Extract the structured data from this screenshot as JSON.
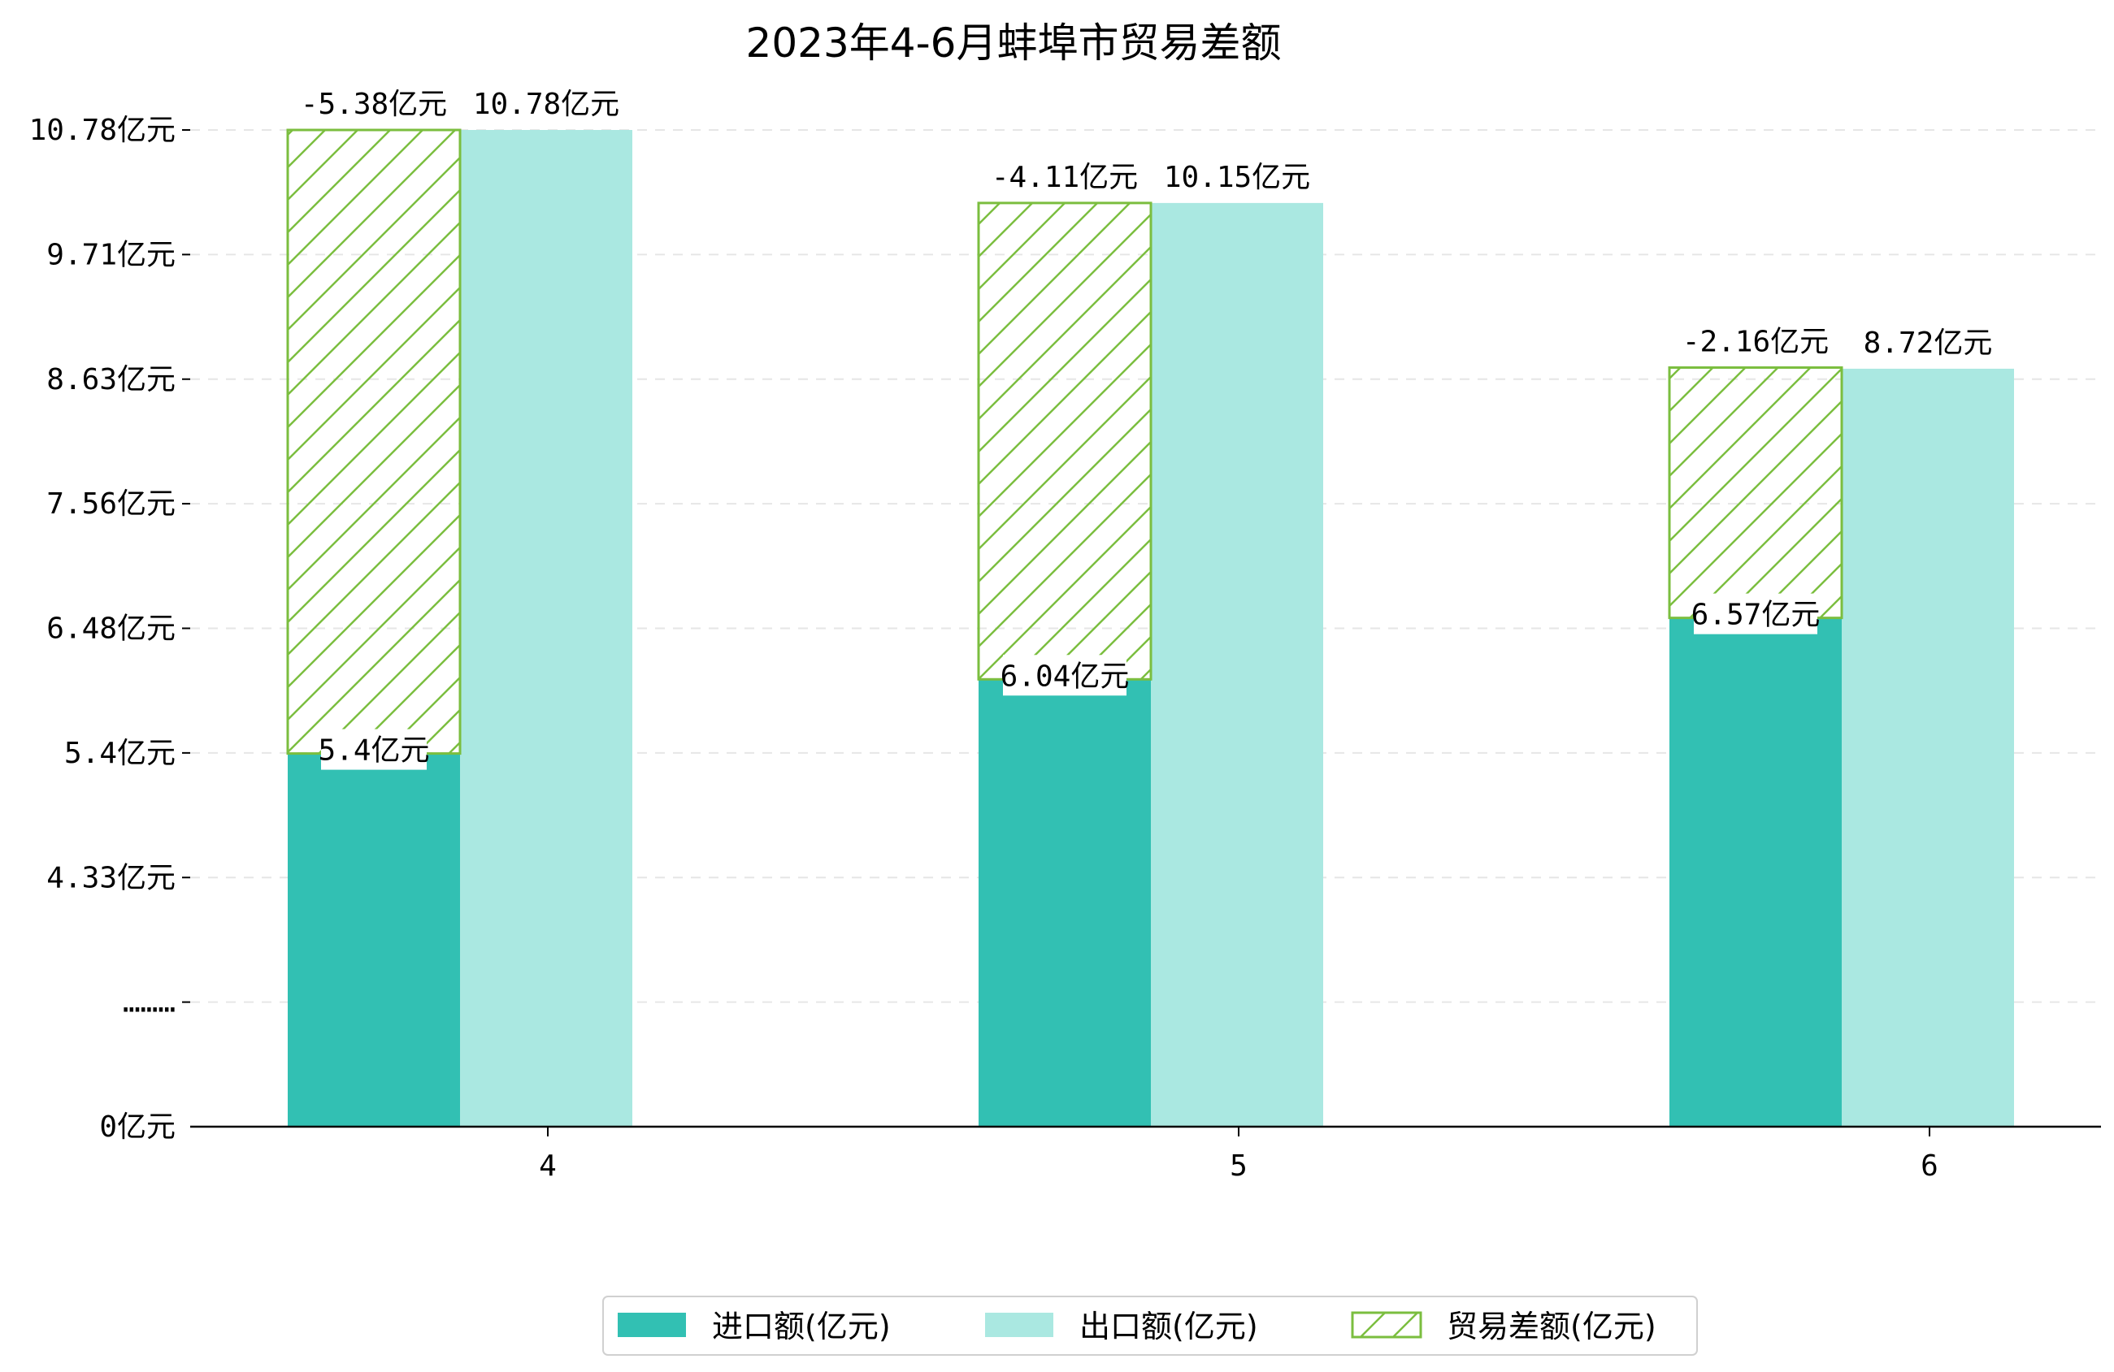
{
  "chart_data": {
    "type": "bar",
    "title": "2023年4-6月蚌埠市贸易差额",
    "categories": [
      "4",
      "5",
      "6"
    ],
    "series": [
      {
        "name": "进口额(亿元)",
        "values": [
          5.4,
          6.04,
          6.57
        ],
        "labels": [
          "5.4亿元",
          "6.04亿元",
          "6.57亿元"
        ],
        "color": "#32c0b3"
      },
      {
        "name": "出口额(亿元)",
        "values": [
          10.78,
          10.15,
          8.72
        ],
        "labels": [
          "10.78亿元",
          "10.15亿元",
          "8.72亿元"
        ],
        "color": "#aae8e1"
      },
      {
        "name": "贸易差额(亿元)",
        "values": [
          -5.38,
          -4.11,
          -2.16
        ],
        "labels": [
          "-5.38亿元",
          "-4.11亿元",
          "-2.16亿元"
        ],
        "color": "#7bbe3f",
        "style": "hatched"
      }
    ],
    "y_ticks": [
      {
        "label": "0亿元",
        "value": 0
      },
      {
        "label": "………",
        "value": null
      },
      {
        "label": "4.33亿元",
        "value": 4.33
      },
      {
        "label": "5.4亿元",
        "value": 5.4
      },
      {
        "label": "6.48亿元",
        "value": 6.48
      },
      {
        "label": "7.56亿元",
        "value": 7.56
      },
      {
        "label": "8.63亿元",
        "value": 8.63
      },
      {
        "label": "9.71亿元",
        "value": 9.71
      },
      {
        "label": "10.78亿元",
        "value": 10.78
      }
    ],
    "ylim": [
      0,
      10.78
    ],
    "y_axis_broken": true,
    "grid": "horizontal-dashed",
    "legend_position": "bottom-center"
  }
}
